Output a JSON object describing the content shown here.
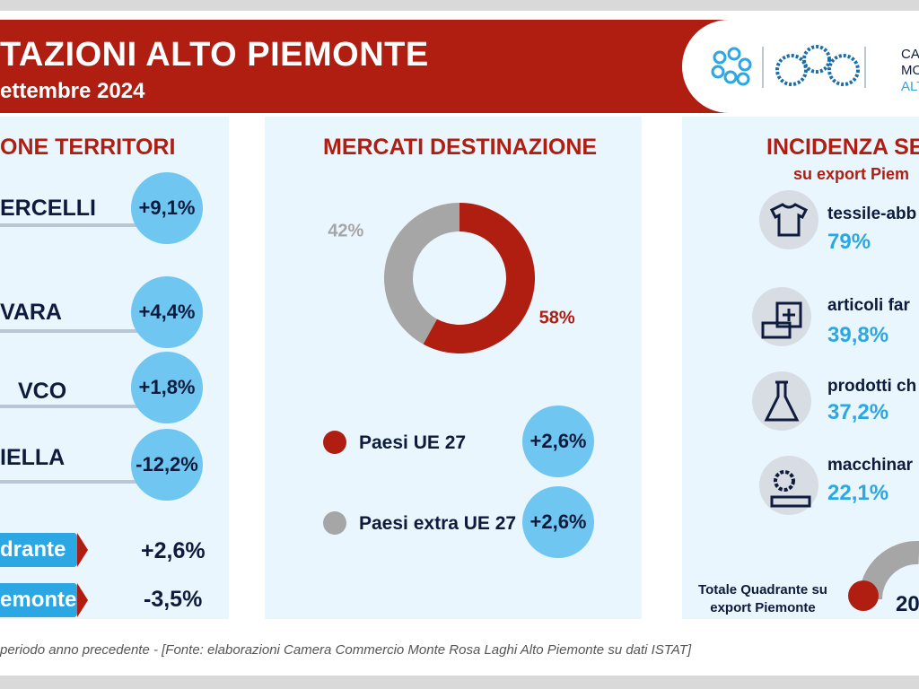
{
  "header": {
    "title": "TAZIONI ALTO PIEMONTE",
    "subtitle": "ettembre 2024",
    "logo_text": [
      "CA",
      "MO",
      "ALT"
    ]
  },
  "territori": {
    "title": "ONE TERRITORI",
    "rows": [
      {
        "label": "ERCELLI",
        "value": "+9,1%"
      },
      {
        "label": "VARA",
        "value": "+4,4%"
      },
      {
        "label": "VCO",
        "value": "+1,8%"
      },
      {
        "label": "IELLA",
        "value": "-12,2%"
      }
    ],
    "totals": [
      {
        "label": "drante",
        "value": "+2,6%"
      },
      {
        "label": "emonte",
        "value": "-3,5%"
      }
    ]
  },
  "chart_data": {
    "type": "pie",
    "title": "MERCATI DESTINAZIONE",
    "categories": [
      "Paesi UE 27",
      "Paesi extra UE 27"
    ],
    "values": [
      58,
      42
    ],
    "labels": [
      "58%",
      "42%"
    ],
    "colors": [
      "#b01e12",
      "#a6a6a6"
    ],
    "variations": [
      "+2,6%",
      "+2,6%"
    ]
  },
  "incidenza": {
    "title": "INCIDENZA SE",
    "subtitle": "su export Piem",
    "sectors": [
      {
        "name": "tessile-abb",
        "value": "79%",
        "icon": "clothing-icon"
      },
      {
        "name": "articoli far",
        "value": "39,8%",
        "icon": "pharmacy-icon"
      },
      {
        "name": "prodotti ch",
        "value": "37,2%",
        "icon": "flask-icon"
      },
      {
        "name": "macchinar",
        "value": "22,1%",
        "icon": "gear-machine-icon"
      }
    ],
    "total_label": [
      "Totale Quadrante su",
      "export Piemonte"
    ],
    "total_value": "20"
  },
  "footer": {
    "note": "periodo anno precedente - [Fonte: elaborazioni Camera Commercio Monte Rosa Laghi Alto Piemonte su dati ISTAT]"
  },
  "colors": {
    "red": "#b01e12",
    "blue": "#2ba7e3",
    "pill": "#6ec6f1",
    "navy": "#0f1b3d",
    "grey": "#a6a6a6",
    "panel": "#e9f6fd"
  }
}
